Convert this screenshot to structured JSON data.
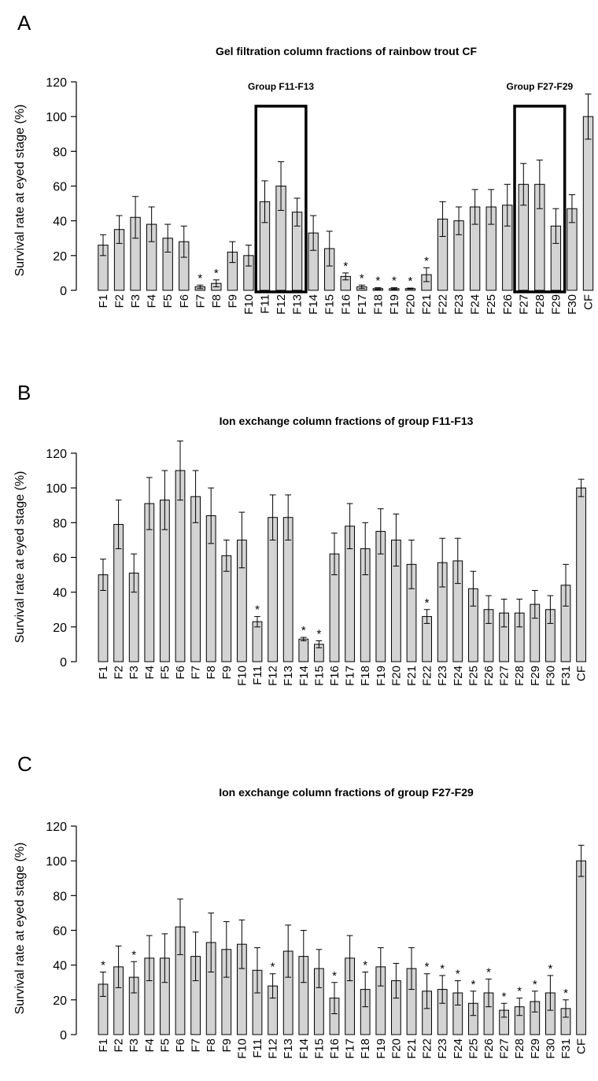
{
  "colors": {
    "bar": "#d3d3d3",
    "stroke": "#000000"
  },
  "chart_data": [
    {
      "type": "bar",
      "panel": "A",
      "title": "Gel filtration column fractions of rainbow trout CF",
      "ylabel": "Survival rate at eyed stage (%)",
      "xlabel": "",
      "ylim": [
        0,
        120
      ],
      "yticks": [
        "0",
        "20",
        "40",
        "60",
        "80",
        "100",
        "120"
      ],
      "categories": [
        "F1",
        "F2",
        "F3",
        "F4",
        "F5",
        "F6",
        "F7",
        "F8",
        "F9",
        "F10",
        "F11",
        "F12",
        "F13",
        "F14",
        "F15",
        "F16",
        "F17",
        "F18",
        "F19",
        "F20",
        "F21",
        "F22",
        "F23",
        "F24",
        "F25",
        "F26",
        "F27",
        "F28",
        "F29",
        "F30",
        "CF"
      ],
      "values": [
        26,
        35,
        42,
        38,
        30,
        28,
        2,
        4,
        22,
        20,
        51,
        60,
        45,
        33,
        24,
        8,
        2,
        1,
        1,
        1,
        9,
        41,
        40,
        48,
        48,
        49,
        61,
        61,
        37,
        47,
        100
      ],
      "errors": [
        6,
        8,
        12,
        10,
        8,
        9,
        1,
        2,
        6,
        6,
        12,
        14,
        8,
        10,
        10,
        2,
        1,
        0.5,
        0.5,
        0.3,
        4,
        10,
        8,
        10,
        10,
        12,
        12,
        14,
        10,
        8,
        13
      ],
      "significant": [
        false,
        false,
        false,
        false,
        false,
        false,
        true,
        true,
        false,
        false,
        false,
        false,
        false,
        false,
        false,
        true,
        true,
        true,
        true,
        true,
        true,
        false,
        false,
        false,
        false,
        false,
        false,
        false,
        false,
        false,
        false
      ],
      "groups": [
        {
          "label": "Group F11-F13",
          "from": 10,
          "to": 12
        },
        {
          "label": "Group F27-F29",
          "from": 26,
          "to": 28
        }
      ]
    },
    {
      "type": "bar",
      "panel": "B",
      "title": "Ion exchange column fractions of group F11-F13",
      "ylabel": "Survival rate at eyed stage (%)",
      "xlabel": "",
      "ylim": [
        0,
        120
      ],
      "yticks": [
        "0",
        "20",
        "40",
        "60",
        "80",
        "100",
        "120"
      ],
      "categories": [
        "F1",
        "F2",
        "F3",
        "F4",
        "F5",
        "F6",
        "F7",
        "F8",
        "F9",
        "F10",
        "F11",
        "F12",
        "F13",
        "F14",
        "F15",
        "F16",
        "F17",
        "F18",
        "F19",
        "F20",
        "F21",
        "F22",
        "F23",
        "F24",
        "F25",
        "F26",
        "F27",
        "F28",
        "F29",
        "F30",
        "F31",
        "CF"
      ],
      "values": [
        50,
        79,
        51,
        91,
        93,
        110,
        95,
        84,
        61,
        70,
        23,
        83,
        83,
        13,
        10,
        62,
        78,
        65,
        75,
        70,
        56,
        26,
        57,
        58,
        42,
        30,
        28,
        28,
        33,
        30,
        44,
        100
      ],
      "errors": [
        9,
        14,
        11,
        15,
        17,
        17,
        15,
        16,
        9,
        16,
        3,
        13,
        13,
        1,
        2,
        12,
        13,
        15,
        13,
        15,
        14,
        4,
        14,
        13,
        10,
        8,
        8,
        8,
        8,
        8,
        12,
        5
      ],
      "significant": [
        false,
        false,
        false,
        false,
        false,
        false,
        false,
        false,
        false,
        false,
        true,
        false,
        false,
        true,
        true,
        false,
        false,
        false,
        false,
        false,
        false,
        true,
        false,
        false,
        false,
        false,
        false,
        false,
        false,
        false,
        false,
        false
      ],
      "groups": []
    },
    {
      "type": "bar",
      "panel": "C",
      "title": "Ion exchange column fractions of group F27-F29",
      "ylabel": "Survival rate at eyed stage (%)",
      "xlabel": "",
      "ylim": [
        0,
        120
      ],
      "yticks": [
        "0",
        "20",
        "40",
        "60",
        "80",
        "100",
        "120"
      ],
      "categories": [
        "F1",
        "F2",
        "F3",
        "F4",
        "F5",
        "F6",
        "F7",
        "F8",
        "F9",
        "F10",
        "F11",
        "F12",
        "F13",
        "F14",
        "F15",
        "F16",
        "F17",
        "F18",
        "F19",
        "F20",
        "F21",
        "F22",
        "F23",
        "F24",
        "F25",
        "F26",
        "F27",
        "F28",
        "F29",
        "F30",
        "F31",
        "CF"
      ],
      "values": [
        29,
        39,
        33,
        44,
        44,
        62,
        45,
        53,
        49,
        52,
        37,
        28,
        48,
        45,
        38,
        21,
        44,
        26,
        39,
        31,
        38,
        25,
        26,
        24,
        18,
        24,
        14,
        16,
        19,
        24,
        15,
        100
      ],
      "errors": [
        7,
        12,
        9,
        13,
        14,
        16,
        14,
        17,
        16,
        14,
        13,
        7,
        15,
        15,
        11,
        9,
        13,
        10,
        11,
        10,
        12,
        10,
        8,
        7,
        7,
        8,
        4,
        5,
        6,
        10,
        5,
        9
      ],
      "significant": [
        true,
        false,
        true,
        false,
        false,
        false,
        false,
        false,
        false,
        false,
        false,
        true,
        false,
        false,
        false,
        true,
        false,
        true,
        false,
        false,
        false,
        true,
        true,
        true,
        true,
        true,
        true,
        true,
        true,
        true,
        true,
        false
      ],
      "groups": []
    }
  ]
}
